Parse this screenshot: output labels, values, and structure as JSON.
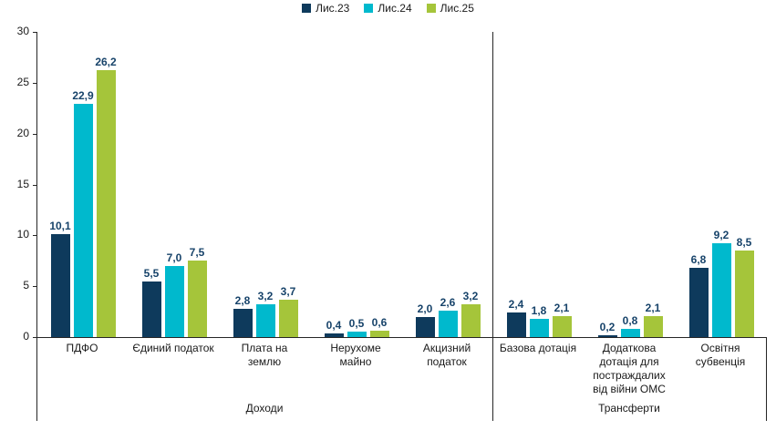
{
  "chart_data": {
    "type": "bar",
    "title": "",
    "categories": [
      "ПДФО",
      "Єдиний податок",
      "Плата на землю",
      "Нерухоме майно",
      "Акцизний податок",
      "Базова дотація",
      "Додаткова дотація для постраждалих від війни ОМС",
      "Освітня субвенція"
    ],
    "category_lines": [
      [
        "ПДФО"
      ],
      [
        "Єдиний податок"
      ],
      [
        "Плата на",
        "землю"
      ],
      [
        "Нерухоме",
        "майно"
      ],
      [
        "Акцизний",
        "податок"
      ],
      [
        "Базова дотація"
      ],
      [
        "Додаткова",
        "дотація для",
        "постраждалих",
        "від війни ОМС"
      ],
      [
        "Освітня",
        "субвенція"
      ]
    ],
    "series": [
      {
        "name": "Лис.23",
        "color": "#0e3a5c",
        "values": [
          10.1,
          5.5,
          2.8,
          0.4,
          2.0,
          2.4,
          0.2,
          6.8
        ]
      },
      {
        "name": "Лис.24",
        "color": "#00b9cd",
        "values": [
          22.9,
          7.0,
          3.2,
          0.5,
          2.6,
          1.8,
          0.8,
          9.2
        ]
      },
      {
        "name": "Лис.25",
        "color": "#a5c53a",
        "values": [
          26.2,
          7.5,
          3.7,
          0.6,
          3.2,
          2.1,
          2.1,
          8.5
        ]
      }
    ],
    "groups": [
      {
        "label": "Доходи",
        "span": 5
      },
      {
        "label": "Трансферти",
        "span": 3
      }
    ],
    "y_axis": {
      "min": 0,
      "max": 30,
      "step": 5,
      "tick_labels": [
        "0",
        "5",
        "10",
        "15",
        "20",
        "25",
        "30"
      ]
    },
    "legend_position": "top",
    "grid": false,
    "value_label_color": "#17436a",
    "axis_color": "#262626",
    "decimal_separator": ","
  }
}
